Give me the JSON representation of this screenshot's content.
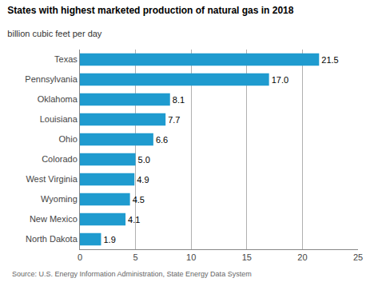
{
  "chart_data": {
    "type": "bar",
    "title": "States with highest marketed production of natural gas in 2018",
    "subtitle": "billion cubic feet per day",
    "annotations": [
      "Source: U.S. Energy Information Administration, State Energy Data System"
    ],
    "orientation": "horizontal",
    "categories": [
      "Texas",
      "Pennsylvania",
      "Oklahoma",
      "Louisiana",
      "Ohio",
      "Colorado",
      "West Virginia",
      "Wyoming",
      "New Mexico",
      "North Dakota"
    ],
    "values": [
      21.5,
      17.0,
      8.1,
      7.7,
      6.6,
      5.0,
      4.9,
      4.5,
      4.1,
      1.9
    ],
    "value_labels": [
      "21.5",
      "17.0",
      "8.1",
      "7.7",
      "6.6",
      "5.0",
      "4.9",
      "4.5",
      "4.1",
      "1.9"
    ],
    "data_labels": true,
    "color": "#1f9bcf",
    "xlim": [
      0,
      25
    ],
    "xticks": [
      0,
      5,
      10,
      15,
      20,
      25
    ],
    "grid": true
  }
}
